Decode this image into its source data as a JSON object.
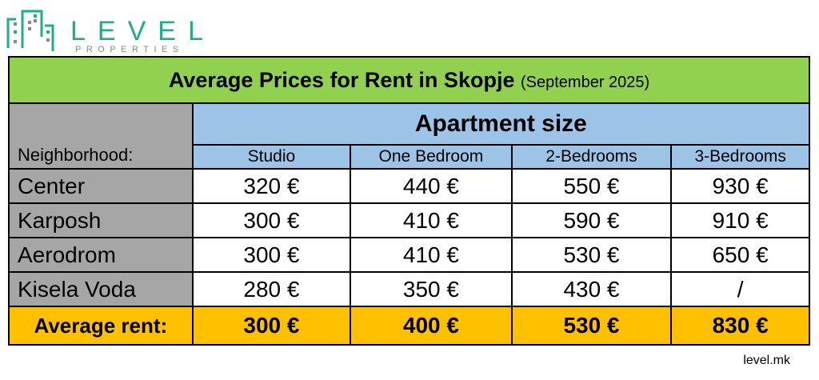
{
  "logo": {
    "name": "LEVEL",
    "tagline": "PROPERTIES",
    "color": "#1fae8b"
  },
  "title": {
    "main": "Average Prices for Rent in Skopje",
    "period": "(September 2025)"
  },
  "header": {
    "group": "Apartment size",
    "neighborhood": "Neighborhood:",
    "columns": [
      "Studio",
      "One Bedroom",
      "2-Bedrooms",
      "3-Bedrooms"
    ]
  },
  "rows": [
    {
      "name": "Center",
      "values": [
        "320 €",
        "440 €",
        "550 €",
        "930 €"
      ]
    },
    {
      "name": "Karposh",
      "values": [
        "300 €",
        "410 €",
        "590 €",
        "910 €"
      ]
    },
    {
      "name": "Aerodrom",
      "values": [
        "300 €",
        "410 €",
        "530 €",
        "650 €"
      ]
    },
    {
      "name": "Kisela Voda",
      "values": [
        "280 €",
        "350 €",
        "430 €",
        "/"
      ]
    }
  ],
  "average": {
    "label": "Average rent:",
    "values": [
      "300 €",
      "400 €",
      "530 €",
      "830 €"
    ]
  },
  "footer": {
    "site": "level.mk"
  },
  "colors": {
    "title_bg": "#92d050",
    "header_bg": "#9dc3e6",
    "neighborhood_bg": "#a6a6a6",
    "average_bg": "#ffc000"
  }
}
